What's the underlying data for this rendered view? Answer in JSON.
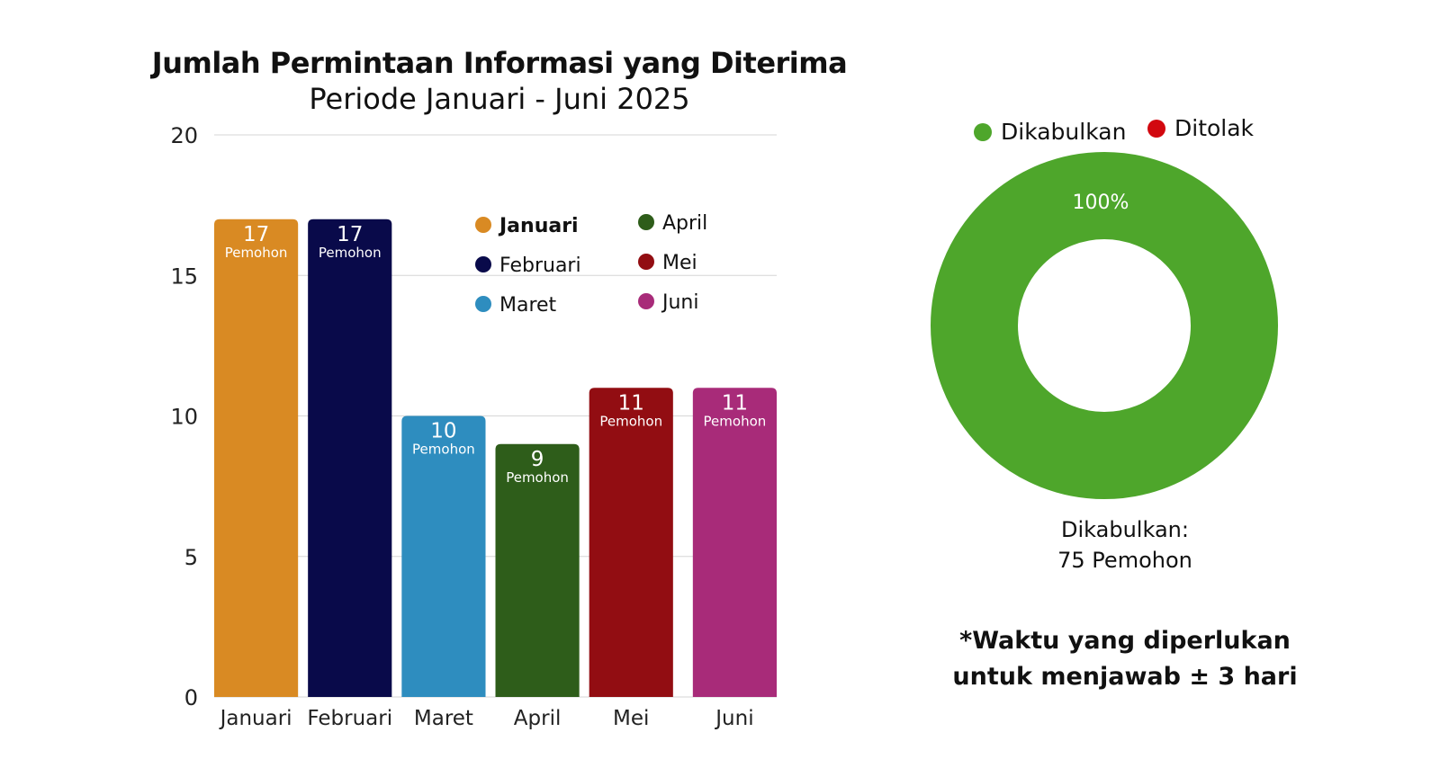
{
  "chart_data": [
    {
      "type": "bar",
      "title": "Jumlah Permintaan Informasi yang Diterima",
      "subtitle": "Periode Januari - Juni 2025",
      "categories": [
        "Januari",
        "Februari",
        "Maret",
        "April",
        "Mei",
        "Juni"
      ],
      "values": [
        17,
        17,
        10,
        9,
        11,
        11
      ],
      "value_unit": "Pemohon",
      "colors": [
        "#d98a23",
        "#090a4a",
        "#2e8dbf",
        "#2e5d1a",
        "#920d12",
        "#a82b79"
      ],
      "ylim": [
        0,
        20
      ],
      "yticks": [
        "0",
        "5",
        "10",
        "15",
        "20"
      ],
      "grid": true,
      "legend": {
        "placement": "top-right",
        "entries": [
          "Januari",
          "Februari",
          "Maret",
          "April",
          "Mei",
          "Juni"
        ]
      }
    },
    {
      "type": "pie",
      "donut": true,
      "labels": [
        "Dikabulkan",
        "Ditolak"
      ],
      "values": [
        100,
        0
      ],
      "value_labels": [
        "100%",
        ""
      ],
      "colors": [
        "#4ea62b",
        "#d2080f"
      ],
      "legend": {
        "placement": "top"
      },
      "summary": {
        "label": "Dikabulkan:",
        "value": "75 Pemohon"
      }
    }
  ],
  "note": {
    "line1": "*Waktu yang diperlukan",
    "line2": "untuk menjawab ± 3 hari"
  }
}
